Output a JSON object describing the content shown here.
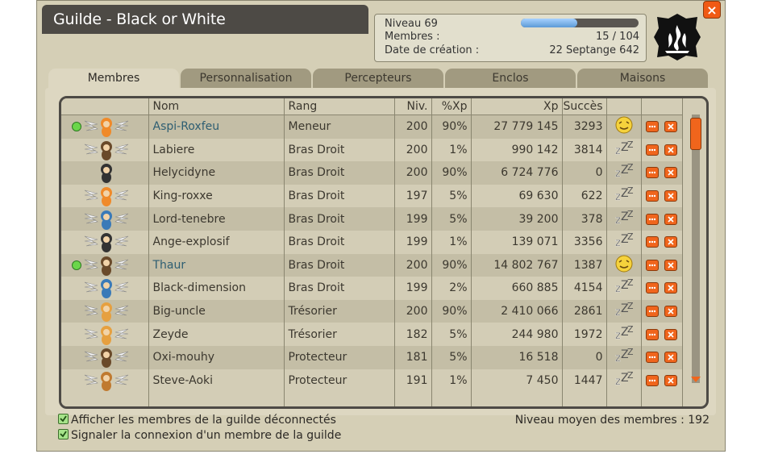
{
  "window": {
    "title": "Guilde - Black or White"
  },
  "info": {
    "level_label": "Niveau 69",
    "members_label": "Membres :",
    "members_value": "15 / 104",
    "created_label": "Date de création :",
    "created_value": "22 Septange 642",
    "xp_progress": 0.48
  },
  "close_label": "×",
  "tabs": [
    {
      "label": "Membres"
    },
    {
      "label": "Personnalisation"
    },
    {
      "label": "Percepteurs"
    },
    {
      "label": "Enclos"
    },
    {
      "label": "Maisons"
    }
  ],
  "table": {
    "headers": [
      "Nom",
      "Rang",
      "Niv.",
      "%Xp",
      "Xp",
      "Succès"
    ],
    "rows": [
      {
        "online": true,
        "name": "Aspi-Roxfeu",
        "rank": "Meneur",
        "level": "200",
        "xp_pct": "90%",
        "xp": "27 779 145",
        "success": "3293",
        "status_icon": "happy-face-icon"
      },
      {
        "online": false,
        "name": "Labiere",
        "rank": "Bras Droit",
        "level": "200",
        "xp_pct": "1%",
        "xp": "990 142",
        "success": "3814",
        "status_icon": "sleep-icon"
      },
      {
        "online": false,
        "name": "Helycidyne",
        "rank": "Bras Droit",
        "level": "200",
        "xp_pct": "90%",
        "xp": "6 724 776",
        "success": "0",
        "status_icon": "sleep-icon"
      },
      {
        "online": false,
        "name": "King-roxxe",
        "rank": "Bras Droit",
        "level": "197",
        "xp_pct": "5%",
        "xp": "69 630",
        "success": "622",
        "status_icon": "sleep-icon"
      },
      {
        "online": false,
        "name": "Lord-tenebre",
        "rank": "Bras Droit",
        "level": "199",
        "xp_pct": "5%",
        "xp": "39 200",
        "success": "378",
        "status_icon": "sleep-icon"
      },
      {
        "online": false,
        "name": "Ange-explosif",
        "rank": "Bras Droit",
        "level": "199",
        "xp_pct": "1%",
        "xp": "139 071",
        "success": "3356",
        "status_icon": "sleep-icon"
      },
      {
        "online": true,
        "name": "Thaur",
        "rank": "Bras Droit",
        "level": "200",
        "xp_pct": "90%",
        "xp": "14 802 767",
        "success": "1387",
        "status_icon": "smirk-face-icon"
      },
      {
        "online": false,
        "name": "Black-dimension",
        "rank": "Bras Droit",
        "level": "199",
        "xp_pct": "2%",
        "xp": "660 885",
        "success": "4154",
        "status_icon": "sleep-icon"
      },
      {
        "online": false,
        "name": "Big-uncle",
        "rank": "Trésorier",
        "level": "200",
        "xp_pct": "90%",
        "xp": "2 410 066",
        "success": "2861",
        "status_icon": "sleep-icon"
      },
      {
        "online": false,
        "name": "Zeyde",
        "rank": "Trésorier",
        "level": "182",
        "xp_pct": "5%",
        "xp": "244 980",
        "success": "1972",
        "status_icon": "sleep-icon"
      },
      {
        "online": false,
        "name": "Oxi-mouhy",
        "rank": "Protecteur",
        "level": "181",
        "xp_pct": "5%",
        "xp": "16 518",
        "success": "0",
        "status_icon": "sleep-icon"
      },
      {
        "online": false,
        "name": "Steve-Aoki",
        "rank": "Protecteur",
        "level": "191",
        "xp_pct": "1%",
        "xp": "7 450",
        "success": "1447",
        "status_icon": "sleep-icon"
      }
    ]
  },
  "options": {
    "show_offline": "Afficher les membres de la guilde déconnectés",
    "notify_connect": "Signaler la connexion d'un membre de la guilde"
  },
  "average_level": "Niveau moyen des membres : 192",
  "colors": {
    "accent": "#f0651c",
    "online": "#6bd64a",
    "frame": "#4d4a45"
  }
}
